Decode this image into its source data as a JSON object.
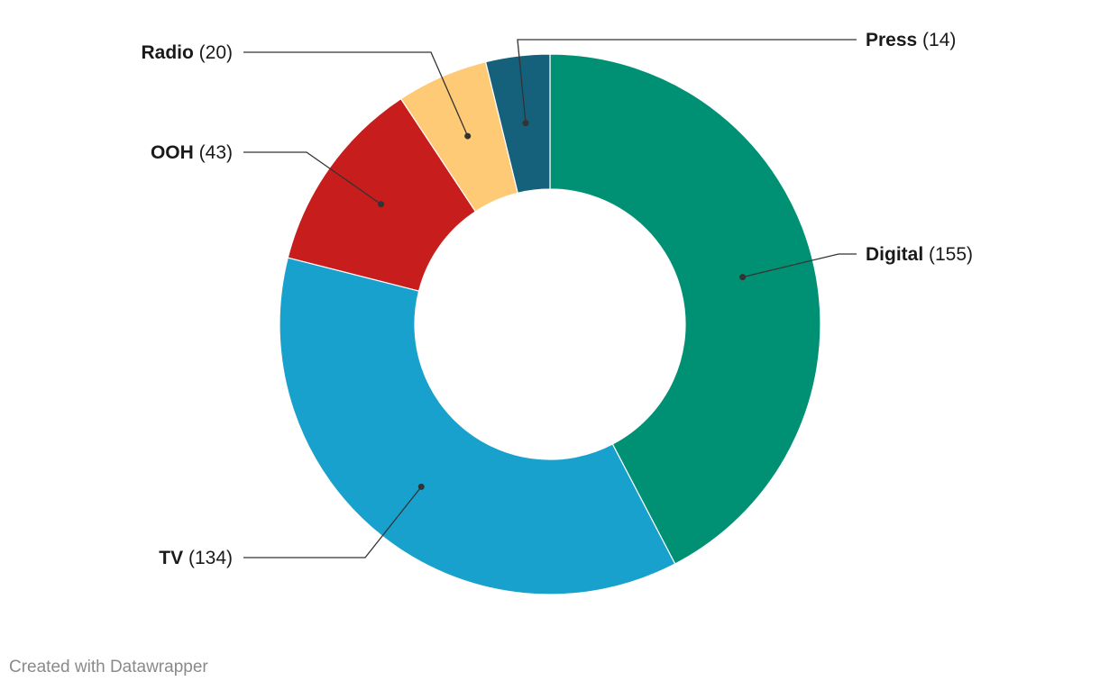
{
  "chart_data": {
    "type": "pie",
    "donut": true,
    "title": "",
    "categories": [
      "Digital",
      "TV",
      "OOH",
      "Radio",
      "Press"
    ],
    "values": [
      155,
      134,
      43,
      20,
      14
    ],
    "colors": [
      "#009073",
      "#19a1cd",
      "#c71e1d",
      "#ffca76",
      "#15607a"
    ],
    "labels": [
      {
        "name": "Digital",
        "value_text": "(155)"
      },
      {
        "name": "TV",
        "value_text": "(134)"
      },
      {
        "name": "OOH",
        "value_text": "(43)"
      },
      {
        "name": "Radio",
        "value_text": "(20)"
      },
      {
        "name": "Press",
        "value_text": "(14)"
      }
    ],
    "legend": "none"
  },
  "footer": {
    "credit": "Created with Datawrapper"
  }
}
